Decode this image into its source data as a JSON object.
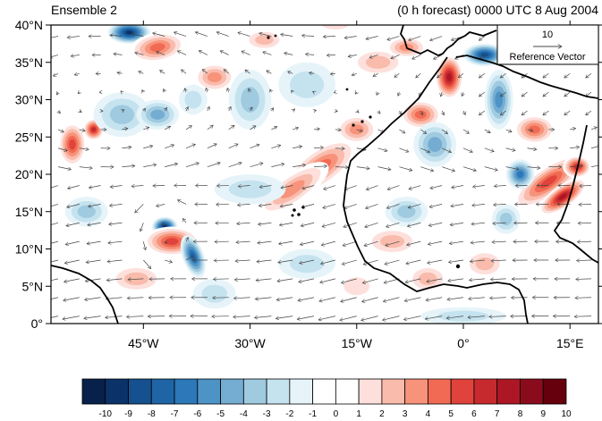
{
  "chart_data": {
    "type": "heatmap",
    "title_left": "Ensemble 2",
    "title_right": "(0 h forecast) 0000 UTC 8 Aug 2004",
    "x_ticks": [
      "45°W",
      "30°W",
      "15°W",
      "0°",
      "15°E"
    ],
    "x_tick_values": [
      -45,
      -30,
      -15,
      0,
      15
    ],
    "y_ticks": [
      "0°",
      "5°N",
      "10°N",
      "15°N",
      "20°N",
      "25°N",
      "30°N",
      "35°N",
      "40°N"
    ],
    "y_tick_values": [
      0,
      5,
      10,
      15,
      20,
      25,
      30,
      35,
      40
    ],
    "xlim": [
      -58,
      19
    ],
    "ylim": [
      0,
      40
    ],
    "colorbar": {
      "labels": [
        "-10",
        "-9",
        "-8",
        "-7",
        "-6",
        "-5",
        "-4",
        "-3",
        "-2",
        "-1",
        "0",
        "1",
        "2",
        "3",
        "4",
        "5",
        "6",
        "7",
        "8",
        "9",
        "10"
      ],
      "colors": [
        "#08214a",
        "#0b3269",
        "#15508f",
        "#1f65a5",
        "#2c78b8",
        "#4d93c6",
        "#74acd2",
        "#9fcae0",
        "#c5e3ef",
        "#e6f4fa",
        "#ffffff",
        "#ffffff",
        "#fde0dc",
        "#f9bbab",
        "#f7937a",
        "#f16a53",
        "#e0433b",
        "#c72a2e",
        "#ad1725",
        "#8a0c1c",
        "#67000d"
      ]
    },
    "reference_vector": {
      "value": "10",
      "label": "Reference Vector"
    }
  }
}
